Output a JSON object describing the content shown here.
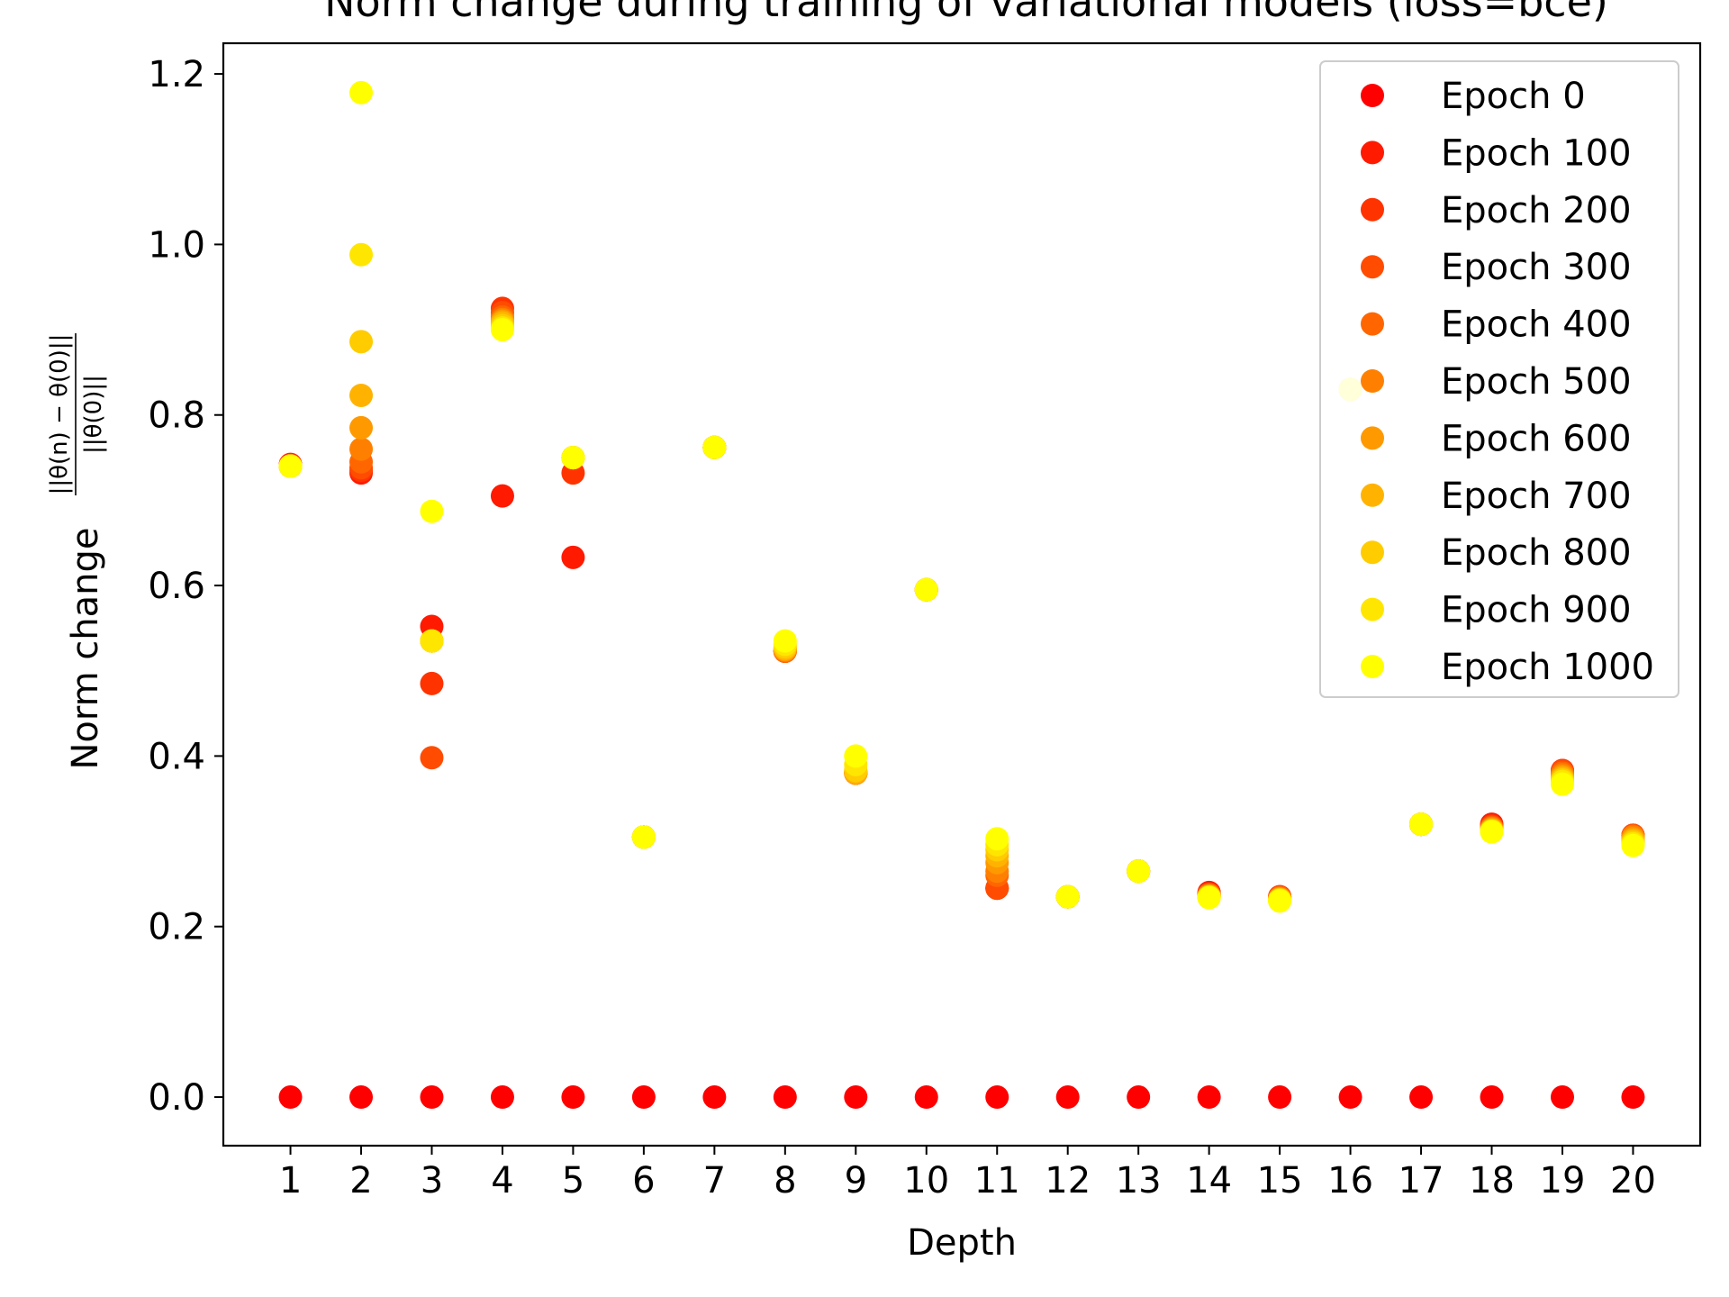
{
  "chart_data": {
    "type": "scatter",
    "title": "Norm change during training of variational models (loss=bce)",
    "xlabel": "Depth",
    "ylabel": "Norm change",
    "ylabel_fraction": {
      "numerator": "||θ(n) − θ(0)||",
      "denominator": "||θ(0)||"
    },
    "xlim": [
      0.05,
      20.95
    ],
    "ylim": [
      -0.057,
      1.236
    ],
    "x_ticks": [
      1,
      2,
      3,
      4,
      5,
      6,
      7,
      8,
      9,
      10,
      11,
      12,
      13,
      14,
      15,
      16,
      17,
      18,
      19,
      20
    ],
    "y_ticks": [
      0.0,
      0.2,
      0.4,
      0.6,
      0.8,
      1.0,
      1.2
    ],
    "y_tick_labels": [
      "0.0",
      "0.2",
      "0.4",
      "0.6",
      "0.8",
      "1.0",
      "1.2"
    ],
    "legend_placement": "top-right",
    "x": [
      1,
      2,
      3,
      4,
      5,
      6,
      7,
      8,
      9,
      10,
      11,
      12,
      13,
      14,
      15,
      16,
      17,
      18,
      19,
      20
    ],
    "series": [
      {
        "name": "Epoch 0",
        "color": "#ff0000",
        "values": [
          0,
          0,
          0,
          0,
          0,
          0,
          0,
          0,
          0,
          0,
          0,
          0,
          0,
          0,
          0,
          0,
          0,
          0,
          0,
          0
        ]
      },
      {
        "name": "Epoch 100",
        "color": "#ff1a00",
        "values": [
          0.742,
          0.732,
          0.552,
          0.705,
          0.633,
          0.305,
          0.762,
          0.523,
          0.38,
          0.595,
          0.245,
          0.235,
          0.265,
          0.24,
          0.235,
          0.83,
          0.32,
          0.32,
          0.383,
          0.307
        ]
      },
      {
        "name": "Epoch 200",
        "color": "#ff3300",
        "values": [
          0.741,
          0.735,
          0.485,
          0.925,
          0.732,
          0.305,
          0.762,
          0.523,
          0.38,
          0.595,
          0.245,
          0.235,
          0.265,
          0.238,
          0.235,
          0.83,
          0.32,
          0.318,
          0.383,
          0.307
        ]
      },
      {
        "name": "Epoch 300",
        "color": "#ff4c00",
        "values": [
          0.741,
          0.738,
          0.398,
          0.92,
          0.75,
          0.305,
          0.762,
          0.523,
          0.38,
          0.595,
          0.245,
          0.235,
          0.265,
          0.238,
          0.234,
          0.83,
          0.32,
          0.317,
          0.382,
          0.307
        ]
      },
      {
        "name": "Epoch 400",
        "color": "#ff6600",
        "values": [
          0.74,
          0.745,
          0.535,
          0.915,
          0.75,
          0.305,
          0.762,
          0.523,
          0.38,
          0.595,
          0.26,
          0.235,
          0.265,
          0.237,
          0.234,
          0.83,
          0.32,
          0.316,
          0.38,
          0.306
        ]
      },
      {
        "name": "Epoch 500",
        "color": "#ff8000",
        "values": [
          0.74,
          0.76,
          0.535,
          0.912,
          0.75,
          0.305,
          0.762,
          0.524,
          0.38,
          0.595,
          0.265,
          0.235,
          0.265,
          0.236,
          0.233,
          0.83,
          0.32,
          0.315,
          0.378,
          0.305
        ]
      },
      {
        "name": "Epoch 600",
        "color": "#ff9900",
        "values": [
          0.74,
          0.785,
          0.535,
          0.91,
          0.75,
          0.305,
          0.762,
          0.525,
          0.38,
          0.595,
          0.275,
          0.235,
          0.265,
          0.236,
          0.232,
          0.83,
          0.32,
          0.314,
          0.376,
          0.303
        ]
      },
      {
        "name": "Epoch 700",
        "color": "#ffb300",
        "values": [
          0.74,
          0.823,
          0.535,
          0.908,
          0.75,
          0.305,
          0.762,
          0.526,
          0.381,
          0.595,
          0.283,
          0.235,
          0.265,
          0.235,
          0.232,
          0.83,
          0.32,
          0.313,
          0.374,
          0.301
        ]
      },
      {
        "name": "Epoch 800",
        "color": "#ffcc00",
        "values": [
          0.74,
          0.886,
          0.535,
          0.905,
          0.75,
          0.305,
          0.762,
          0.528,
          0.383,
          0.595,
          0.29,
          0.235,
          0.265,
          0.235,
          0.231,
          0.83,
          0.32,
          0.312,
          0.372,
          0.299
        ]
      },
      {
        "name": "Epoch 900",
        "color": "#ffe600",
        "values": [
          0.74,
          0.988,
          0.535,
          0.902,
          0.75,
          0.305,
          0.762,
          0.531,
          0.39,
          0.595,
          0.296,
          0.235,
          0.265,
          0.234,
          0.231,
          0.83,
          0.32,
          0.312,
          0.37,
          0.297
        ]
      },
      {
        "name": "Epoch 1000",
        "color": "#ffff00",
        "values": [
          0.74,
          1.178,
          0.687,
          0.9,
          0.75,
          0.305,
          0.762,
          0.535,
          0.4,
          0.595,
          0.303,
          0.235,
          0.265,
          0.234,
          0.23,
          0.83,
          0.32,
          0.311,
          0.367,
          0.295
        ]
      }
    ]
  }
}
